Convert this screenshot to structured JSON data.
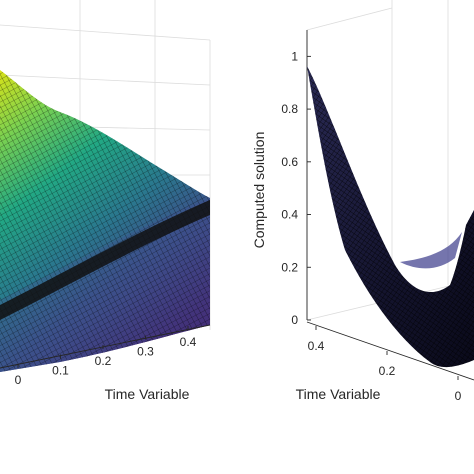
{
  "chart_data": [
    {
      "type": "surface",
      "panel": "left",
      "colormap": "viridis",
      "edge_color": "#000000",
      "grid": true,
      "xlabel": "Time Variable",
      "x_ticks": [
        "0",
        "0.1",
        "0.2",
        "0.3",
        "0.4"
      ],
      "xlim": [
        0,
        0.45
      ]
    },
    {
      "type": "surface",
      "panel": "right",
      "colormap": "dark",
      "edge_color": "#000000",
      "grid": true,
      "xlabel": "Time Variable",
      "ylabel": "Computed solution",
      "x_ticks": [
        "0.4",
        "0.2",
        "0"
      ],
      "z_ticks": [
        "0",
        "0.2",
        "0.4",
        "0.6",
        "0.8",
        "1"
      ],
      "zlim": [
        0,
        1.1
      ]
    }
  ],
  "colors": {
    "viridis_high": "#d8e219",
    "viridis_mid": "#21918c",
    "viridis_low": "#3b528b",
    "dark_surface": "#1a1a40"
  }
}
